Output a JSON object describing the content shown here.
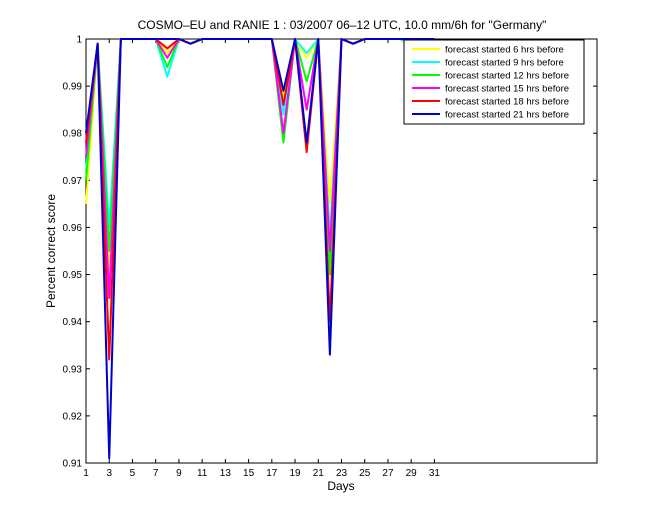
{
  "chart_data": {
    "type": "line",
    "title": "COSMO–EU and RANIE 1 : 03/2007 06–12 UTC, 10.0 mm/6h for \"Germany\"",
    "xlabel": "Days",
    "ylabel": "Percent correct score",
    "xlim": [
      1,
      45
    ],
    "ylim": [
      0.91,
      1.0
    ],
    "x_ticks": [
      1,
      3,
      5,
      7,
      9,
      11,
      13,
      15,
      17,
      19,
      21,
      23,
      25,
      27,
      29,
      31
    ],
    "y_ticks": [
      0.91,
      0.92,
      0.93,
      0.94,
      0.95,
      0.96,
      0.97,
      0.98,
      0.99,
      1.0
    ],
    "y_tick_labels": [
      "0.91",
      "0.92",
      "0.93",
      "0.94",
      "0.95",
      "0.96",
      "0.97",
      "0.98",
      "0.99",
      "1"
    ],
    "grid": false,
    "legend_position": "top-right",
    "x": [
      1,
      2,
      3,
      4,
      5,
      6,
      7,
      8,
      9,
      10,
      11,
      12,
      13,
      14,
      15,
      16,
      17,
      18,
      19,
      20,
      21,
      22,
      23,
      24,
      25,
      26,
      27,
      28,
      29,
      30,
      31
    ],
    "series": [
      {
        "name": "forecast started 6 hrs before",
        "color": "#ffff00",
        "values": [
          0.965,
          0.999,
          0.95,
          1.0,
          1.0,
          1.0,
          1.0,
          0.997,
          1.0,
          0.999,
          1.0,
          1.0,
          1.0,
          1.0,
          1.0,
          1.0,
          1.0,
          0.988,
          1.0,
          0.996,
          1.0,
          0.965,
          1.0,
          0.999,
          1.0,
          1.0,
          1.0,
          1.0,
          0.998,
          1.0,
          1.0
        ]
      },
      {
        "name": "forecast started 9 hrs before",
        "color": "#00ffff",
        "values": [
          0.972,
          0.999,
          0.96,
          1.0,
          1.0,
          1.0,
          1.0,
          0.992,
          1.0,
          0.999,
          1.0,
          1.0,
          1.0,
          1.0,
          1.0,
          1.0,
          1.0,
          0.984,
          1.0,
          0.997,
          1.0,
          0.958,
          1.0,
          0.999,
          1.0,
          1.0,
          1.0,
          1.0,
          0.999,
          0.999,
          1.0
        ]
      },
      {
        "name": "forecast started 12 hrs before",
        "color": "#00ff00",
        "values": [
          0.97,
          0.999,
          0.955,
          1.0,
          1.0,
          1.0,
          1.0,
          0.994,
          1.0,
          0.999,
          1.0,
          1.0,
          1.0,
          1.0,
          1.0,
          1.0,
          1.0,
          0.978,
          1.0,
          0.991,
          1.0,
          0.95,
          1.0,
          0.999,
          1.0,
          1.0,
          1.0,
          1.0,
          1.0,
          1.0,
          1.0
        ]
      },
      {
        "name": "forecast started 15 hrs before",
        "color": "#ff00ff",
        "values": [
          0.975,
          0.999,
          0.945,
          1.0,
          1.0,
          1.0,
          1.0,
          0.996,
          1.0,
          0.999,
          1.0,
          1.0,
          1.0,
          1.0,
          1.0,
          1.0,
          1.0,
          0.98,
          1.0,
          0.985,
          1.0,
          0.955,
          1.0,
          0.999,
          1.0,
          1.0,
          1.0,
          1.0,
          1.0,
          1.0,
          1.0
        ]
      },
      {
        "name": "forecast started 18 hrs before",
        "color": "#ff0000",
        "values": [
          0.978,
          0.999,
          0.932,
          1.0,
          1.0,
          1.0,
          1.0,
          0.998,
          1.0,
          0.999,
          1.0,
          1.0,
          1.0,
          1.0,
          1.0,
          1.0,
          1.0,
          0.986,
          1.0,
          0.976,
          1.0,
          0.94,
          1.0,
          0.999,
          1.0,
          1.0,
          1.0,
          1.0,
          1.0,
          1.0,
          1.0
        ]
      },
      {
        "name": "forecast started 21 hrs before",
        "color": "#0000cc",
        "values": [
          0.98,
          0.999,
          0.911,
          1.0,
          1.0,
          1.0,
          1.0,
          1.0,
          1.0,
          0.999,
          1.0,
          1.0,
          1.0,
          1.0,
          1.0,
          1.0,
          1.0,
          0.989,
          1.0,
          0.978,
          1.0,
          0.933,
          1.0,
          0.999,
          1.0,
          1.0,
          1.0,
          1.0,
          1.0,
          1.0,
          1.0
        ]
      }
    ]
  }
}
